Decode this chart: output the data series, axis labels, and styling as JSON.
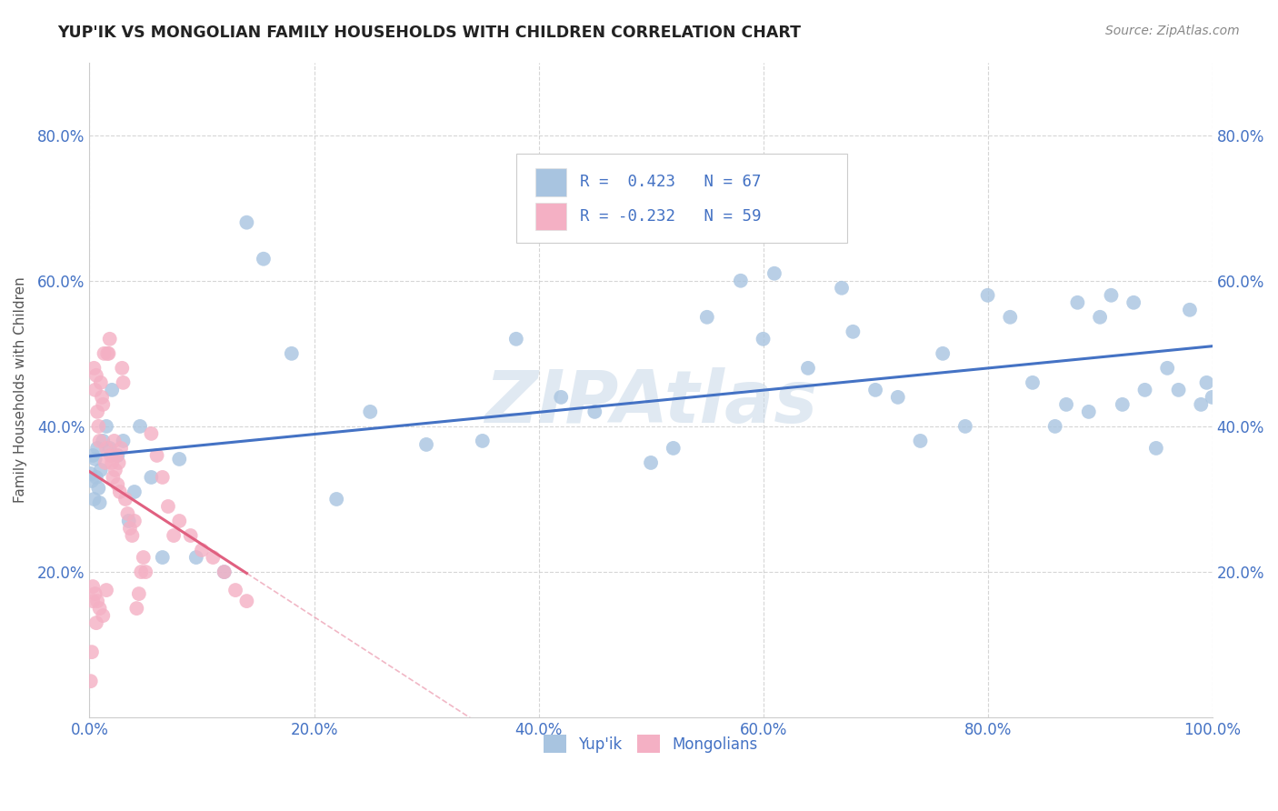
{
  "title": "YUP'IK VS MONGOLIAN FAMILY HOUSEHOLDS WITH CHILDREN CORRELATION CHART",
  "source": "Source: ZipAtlas.com",
  "ylabel": "Family Households with Children",
  "xmin": 0.0,
  "xmax": 1.0,
  "ymin": 0.0,
  "ymax": 0.9,
  "yticks": [
    0.2,
    0.4,
    0.6,
    0.8
  ],
  "xticks": [
    0.0,
    0.2,
    0.4,
    0.6,
    0.8,
    1.0
  ],
  "r_yupik": 0.423,
  "n_yupik": 67,
  "r_mongolian": -0.232,
  "n_mongolian": 59,
  "watermark": "ZIPAtlas",
  "yupik_color": "#a8c4e0",
  "mongolian_color": "#f4b0c4",
  "yupik_line_color": "#4472c4",
  "mongolian_line_color": "#e06080",
  "legend_text_color": "#4472c4",
  "tick_color": "#4472c4",
  "title_color": "#222222",
  "source_color": "#888888",
  "ylabel_color": "#555555",
  "yupik_x": [
    0.001,
    0.002,
    0.003,
    0.004,
    0.005,
    0.006,
    0.007,
    0.008,
    0.009,
    0.01,
    0.012,
    0.015,
    0.018,
    0.02,
    0.025,
    0.03,
    0.035,
    0.04,
    0.045,
    0.055,
    0.065,
    0.08,
    0.095,
    0.12,
    0.14,
    0.155,
    0.18,
    0.22,
    0.25,
    0.35,
    0.38,
    0.42,
    0.45,
    0.5,
    0.52,
    0.55,
    0.58,
    0.6,
    0.64,
    0.68,
    0.7,
    0.72,
    0.74,
    0.76,
    0.78,
    0.8,
    0.82,
    0.84,
    0.86,
    0.87,
    0.88,
    0.89,
    0.9,
    0.91,
    0.92,
    0.93,
    0.94,
    0.95,
    0.96,
    0.97,
    0.98,
    0.99,
    0.995,
    1.0,
    0.3,
    0.61,
    0.67
  ],
  "yupik_y": [
    0.335,
    0.325,
    0.36,
    0.3,
    0.355,
    0.33,
    0.37,
    0.315,
    0.295,
    0.34,
    0.38,
    0.4,
    0.37,
    0.45,
    0.36,
    0.38,
    0.27,
    0.31,
    0.4,
    0.33,
    0.22,
    0.355,
    0.22,
    0.2,
    0.68,
    0.63,
    0.5,
    0.3,
    0.42,
    0.38,
    0.52,
    0.44,
    0.42,
    0.35,
    0.37,
    0.55,
    0.6,
    0.52,
    0.48,
    0.53,
    0.45,
    0.44,
    0.38,
    0.5,
    0.4,
    0.58,
    0.55,
    0.46,
    0.4,
    0.43,
    0.57,
    0.42,
    0.55,
    0.58,
    0.43,
    0.57,
    0.45,
    0.37,
    0.48,
    0.45,
    0.56,
    0.43,
    0.46,
    0.44,
    0.375,
    0.61,
    0.59
  ],
  "mongolian_x": [
    0.001,
    0.002,
    0.003,
    0.004,
    0.005,
    0.006,
    0.007,
    0.008,
    0.009,
    0.01,
    0.011,
    0.012,
    0.013,
    0.014,
    0.015,
    0.016,
    0.017,
    0.018,
    0.019,
    0.02,
    0.021,
    0.022,
    0.023,
    0.024,
    0.025,
    0.026,
    0.027,
    0.028,
    0.029,
    0.03,
    0.032,
    0.034,
    0.036,
    0.038,
    0.04,
    0.042,
    0.044,
    0.046,
    0.048,
    0.05,
    0.055,
    0.06,
    0.065,
    0.07,
    0.075,
    0.08,
    0.09,
    0.1,
    0.11,
    0.12,
    0.13,
    0.14,
    0.005,
    0.007,
    0.009,
    0.012,
    0.015,
    0.003,
    0.006
  ],
  "mongolian_y": [
    0.05,
    0.09,
    0.16,
    0.48,
    0.45,
    0.47,
    0.42,
    0.4,
    0.38,
    0.46,
    0.44,
    0.43,
    0.5,
    0.35,
    0.37,
    0.5,
    0.5,
    0.52,
    0.36,
    0.35,
    0.33,
    0.38,
    0.34,
    0.36,
    0.32,
    0.35,
    0.31,
    0.37,
    0.48,
    0.46,
    0.3,
    0.28,
    0.26,
    0.25,
    0.27,
    0.15,
    0.17,
    0.2,
    0.22,
    0.2,
    0.39,
    0.36,
    0.33,
    0.29,
    0.25,
    0.27,
    0.25,
    0.23,
    0.22,
    0.2,
    0.175,
    0.16,
    0.17,
    0.16,
    0.15,
    0.14,
    0.175,
    0.18,
    0.13
  ]
}
